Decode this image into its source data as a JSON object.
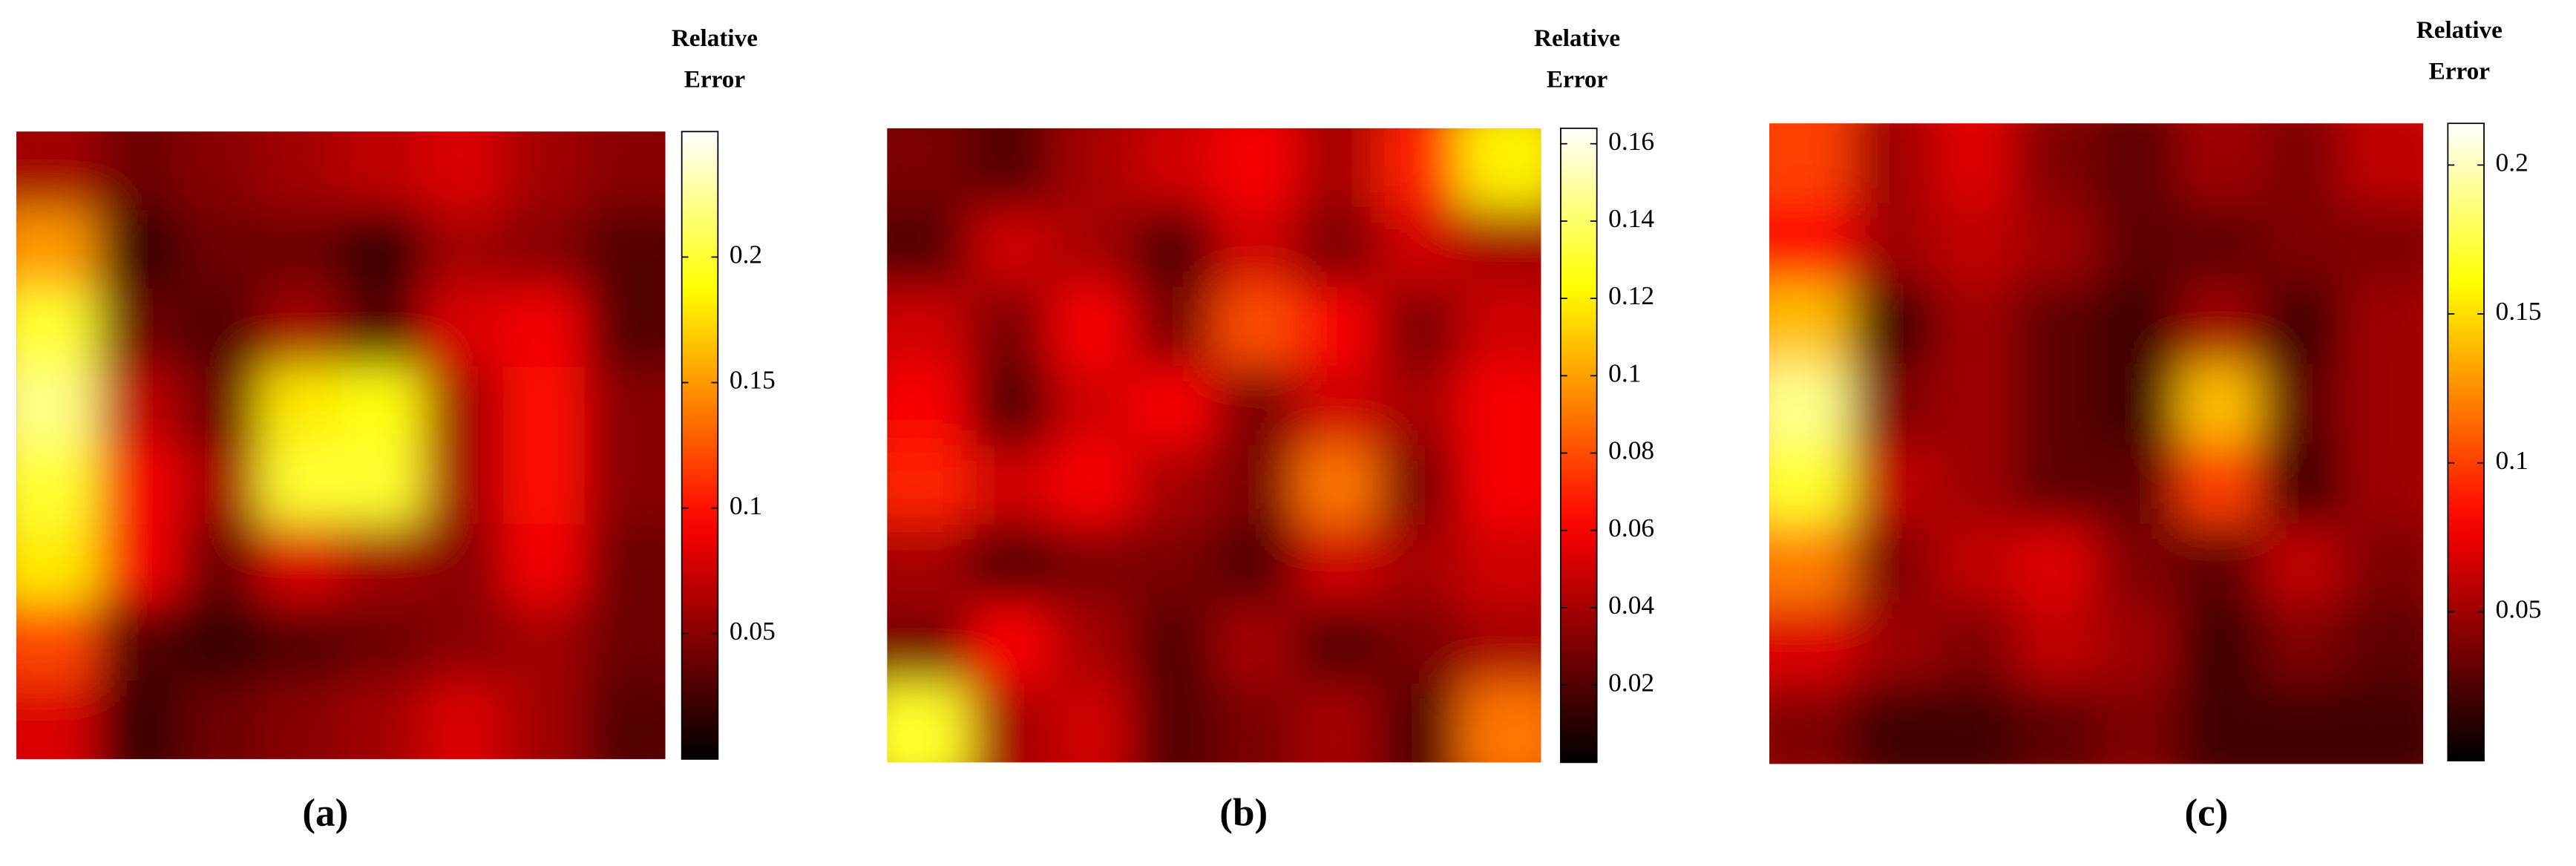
{
  "chart_data": [
    {
      "type": "heatmap",
      "colormap": "hot",
      "colorbar_label": "Relative Error",
      "caption": "(a)",
      "zlim": [
        0,
        0.25
      ],
      "zticks": [
        0.05,
        0.1,
        0.15,
        0.2
      ],
      "values": [
        [
          0.06,
          0.04,
          0.05,
          0.06,
          0.07,
          0.08,
          0.06,
          0.05
        ],
        [
          0.15,
          0.02,
          0.04,
          0.04,
          0.02,
          0.06,
          0.05,
          0.03
        ],
        [
          0.2,
          0.04,
          0.03,
          0.06,
          0.03,
          0.08,
          0.09,
          0.03
        ],
        [
          0.22,
          0.07,
          0.04,
          0.18,
          0.19,
          0.06,
          0.1,
          0.05
        ],
        [
          0.2,
          0.09,
          0.06,
          0.2,
          0.2,
          0.06,
          0.1,
          0.05
        ],
        [
          0.18,
          0.09,
          0.04,
          0.08,
          0.06,
          0.05,
          0.09,
          0.04
        ],
        [
          0.12,
          0.03,
          0.02,
          0.03,
          0.04,
          0.05,
          0.06,
          0.04
        ],
        [
          0.08,
          0.02,
          0.04,
          0.05,
          0.06,
          0.08,
          0.06,
          0.03
        ]
      ]
    },
    {
      "type": "heatmap",
      "colormap": "hot",
      "colorbar_label": "Relative Error",
      "caption": "(b)",
      "zlim": [
        0,
        0.164
      ],
      "zticks": [
        0.02,
        0.04,
        0.06,
        0.08,
        0.1,
        0.12,
        0.14,
        0.16
      ],
      "values": [
        [
          0.03,
          0.02,
          0.04,
          0.05,
          0.06,
          0.04,
          0.07,
          0.12
        ],
        [
          0.02,
          0.05,
          0.04,
          0.02,
          0.05,
          0.03,
          0.05,
          0.04
        ],
        [
          0.05,
          0.03,
          0.06,
          0.03,
          0.08,
          0.06,
          0.03,
          0.05
        ],
        [
          0.06,
          0.02,
          0.05,
          0.06,
          0.03,
          0.05,
          0.04,
          0.06
        ],
        [
          0.07,
          0.05,
          0.06,
          0.04,
          0.03,
          0.09,
          0.03,
          0.06
        ],
        [
          0.04,
          0.02,
          0.03,
          0.03,
          0.02,
          0.05,
          0.04,
          0.05
        ],
        [
          0.03,
          0.06,
          0.04,
          0.02,
          0.04,
          0.02,
          0.03,
          0.04
        ],
        [
          0.13,
          0.04,
          0.05,
          0.02,
          0.03,
          0.04,
          0.02,
          0.09
        ]
      ]
    },
    {
      "type": "heatmap",
      "colormap": "hot",
      "colorbar_label": "Relative Error",
      "caption": "(c)",
      "zlim": [
        0,
        0.214
      ],
      "zticks": [
        0.05,
        0.1,
        0.15,
        0.2
      ],
      "values": [
        [
          0.1,
          0.05,
          0.07,
          0.04,
          0.03,
          0.05,
          0.04,
          0.06
        ],
        [
          0.08,
          0.05,
          0.06,
          0.05,
          0.03,
          0.03,
          0.04,
          0.04
        ],
        [
          0.14,
          0.02,
          0.05,
          0.03,
          0.02,
          0.05,
          0.02,
          0.05
        ],
        [
          0.19,
          0.04,
          0.05,
          0.03,
          0.02,
          0.14,
          0.03,
          0.05
        ],
        [
          0.17,
          0.06,
          0.05,
          0.03,
          0.03,
          0.1,
          0.02,
          0.05
        ],
        [
          0.12,
          0.04,
          0.06,
          0.07,
          0.04,
          0.03,
          0.06,
          0.04
        ],
        [
          0.07,
          0.05,
          0.04,
          0.06,
          0.05,
          0.02,
          0.04,
          0.03
        ],
        [
          0.04,
          0.02,
          0.02,
          0.03,
          0.04,
          0.02,
          0.02,
          0.02
        ]
      ]
    }
  ]
}
